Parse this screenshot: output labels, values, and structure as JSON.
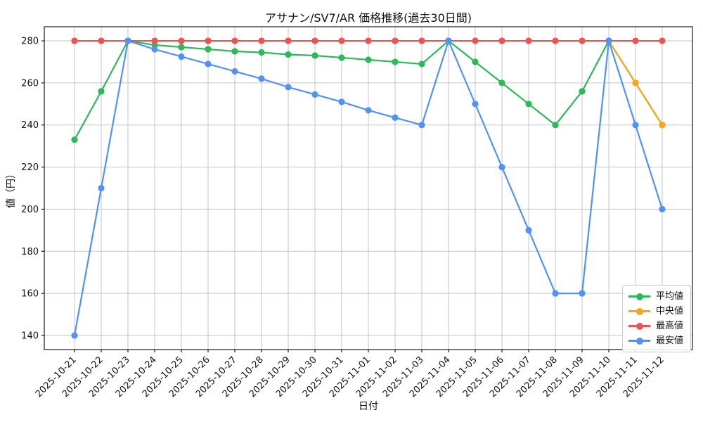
{
  "chart_data": {
    "type": "line",
    "title": "アサナン/SV7/AR 価格推移(過去30日間)",
    "xlabel": "日付",
    "ylabel": "値（円）",
    "x": [
      "2025-10-21",
      "2025-10-22",
      "2025-10-23",
      "2025-10-24",
      "2025-10-25",
      "2025-10-26",
      "2025-10-27",
      "2025-10-28",
      "2025-10-29",
      "2025-10-30",
      "2025-10-31",
      "2025-11-01",
      "2025-11-02",
      "2025-11-03",
      "2025-11-04",
      "2025-11-05",
      "2025-11-06",
      "2025-11-07",
      "2025-11-08",
      "2025-11-09",
      "2025-11-10",
      "2025-11-11",
      "2025-11-12"
    ],
    "series": [
      {
        "key": "average",
        "name": "平均値",
        "color": "#2eb858",
        "values": [
          233,
          256,
          280,
          278,
          277,
          276,
          275,
          274.5,
          273.5,
          273,
          272,
          271,
          270,
          269,
          280,
          270,
          260,
          250,
          240,
          256,
          280,
          260,
          240
        ]
      },
      {
        "key": "median",
        "name": "中央値",
        "color": "#f9a51a",
        "values": [
          280,
          280,
          280,
          280,
          280,
          280,
          280,
          280,
          280,
          280,
          280,
          280,
          280,
          280,
          280,
          280,
          280,
          280,
          280,
          280,
          280,
          260,
          240
        ]
      },
      {
        "key": "max",
        "name": "最高値",
        "color": "#ef5350",
        "values": [
          280,
          280,
          280,
          280,
          280,
          280,
          280,
          280,
          280,
          280,
          280,
          280,
          280,
          280,
          280,
          280,
          280,
          280,
          280,
          280,
          280,
          280,
          280
        ]
      },
      {
        "key": "min",
        "name": "最安値",
        "color": "#5292f4",
        "values": [
          140,
          210,
          280,
          276,
          272.5,
          269,
          265.5,
          262,
          258,
          254.5,
          251,
          247,
          243.5,
          240,
          280,
          250,
          220,
          190,
          160,
          160,
          280,
          240,
          200
        ]
      }
    ],
    "yticks": [
      140,
      160,
      180,
      200,
      220,
      240,
      260,
      280
    ],
    "ylim": [
      133.3,
      286.7
    ],
    "grid": true,
    "legend_position": "lower right",
    "style": {
      "background": "#ffffff",
      "grid_color": "#c6c6c6",
      "spine_color": "#1a1a1a",
      "text_color": "#111111",
      "legend_border": "#cccccc"
    }
  }
}
